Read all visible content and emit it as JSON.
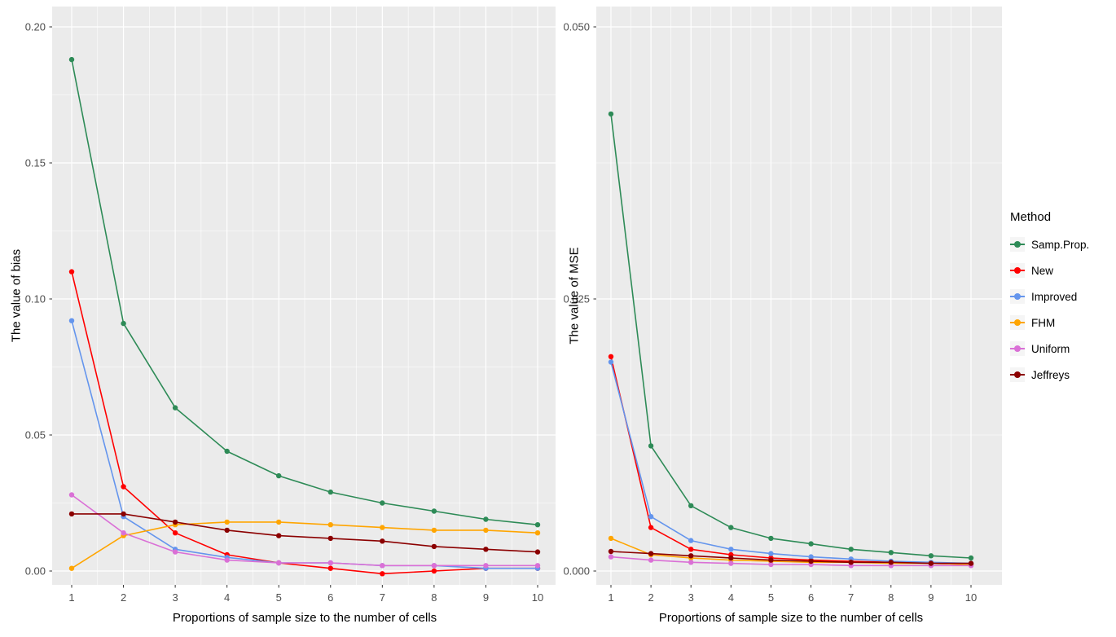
{
  "figure": {
    "background": "#FFFFFF",
    "panel_background": "#EBEBEB",
    "gridline_color": "#FFFFFF",
    "tick_label_color": "#4D4D4D",
    "tick_mark_color": "#333333",
    "axis_title_color": "#000000"
  },
  "legend": {
    "title": "Method",
    "entries": [
      {
        "label": "Samp.Prop.",
        "color": "#2E8B57"
      },
      {
        "label": "New",
        "color": "#FF0000"
      },
      {
        "label": "Improved",
        "color": "#6495ED"
      },
      {
        "label": "FHM",
        "color": "#FFA500"
      },
      {
        "label": "Uniform",
        "color": "#DA70D6"
      },
      {
        "label": "Jeffreys",
        "color": "#8B0000"
      }
    ]
  },
  "chart_data": [
    {
      "type": "line",
      "xlabel": "Proportions of sample size to the number of cells",
      "ylabel": "The value of bias",
      "x": [
        1,
        2,
        3,
        4,
        5,
        6,
        7,
        8,
        9,
        10
      ],
      "xlim": [
        1,
        10
      ],
      "ylim": [
        0,
        0.2
      ],
      "yticks": [
        0,
        0.05,
        0.1,
        0.15,
        0.2
      ],
      "ytick_labels": [
        "0.00",
        "0.05",
        "0.10",
        "0.15",
        "0.20"
      ],
      "xtick_labels": [
        "1",
        "2",
        "3",
        "4",
        "5",
        "6",
        "7",
        "8",
        "9",
        "10"
      ],
      "grid": true,
      "legend_position": "right",
      "series": [
        {
          "name": "Samp.Prop.",
          "color": "#2E8B57",
          "values": [
            0.188,
            0.091,
            0.06,
            0.044,
            0.035,
            0.029,
            0.025,
            0.022,
            0.019,
            0.017
          ]
        },
        {
          "name": "New",
          "color": "#FF0000",
          "values": [
            0.11,
            0.031,
            0.014,
            0.006,
            0.003,
            0.001,
            -0.001,
            0.0,
            0.001,
            0.001
          ]
        },
        {
          "name": "Improved",
          "color": "#6495ED",
          "values": [
            0.092,
            0.02,
            0.008,
            0.005,
            0.003,
            0.003,
            0.002,
            0.002,
            0.001,
            0.001
          ]
        },
        {
          "name": "FHM",
          "color": "#FFA500",
          "values": [
            0.001,
            0.013,
            0.017,
            0.018,
            0.018,
            0.017,
            0.016,
            0.015,
            0.015,
            0.014
          ]
        },
        {
          "name": "Uniform",
          "color": "#DA70D6",
          "values": [
            0.028,
            0.014,
            0.007,
            0.004,
            0.003,
            0.003,
            0.002,
            0.002,
            0.002,
            0.002
          ]
        },
        {
          "name": "Jeffreys",
          "color": "#8B0000",
          "values": [
            0.021,
            0.021,
            0.018,
            0.015,
            0.013,
            0.012,
            0.011,
            0.009,
            0.008,
            0.007
          ]
        }
      ]
    },
    {
      "type": "line",
      "xlabel": "Proportions of sample size to the number of cells",
      "ylabel": "The value of MSE",
      "x": [
        1,
        2,
        3,
        4,
        5,
        6,
        7,
        8,
        9,
        10
      ],
      "xlim": [
        1,
        10
      ],
      "ylim": [
        0,
        0.05
      ],
      "yticks": [
        0,
        0.025,
        0.05
      ],
      "ytick_labels": [
        "0.000",
        "0.025",
        "0.050"
      ],
      "xtick_labels": [
        "1",
        "2",
        "3",
        "4",
        "5",
        "6",
        "7",
        "8",
        "9",
        "10"
      ],
      "grid": true,
      "legend_position": "right",
      "series": [
        {
          "name": "Samp.Prop.",
          "color": "#2E8B57",
          "values": [
            0.042,
            0.0115,
            0.006,
            0.004,
            0.003,
            0.0025,
            0.002,
            0.0017,
            0.0014,
            0.0012
          ]
        },
        {
          "name": "New",
          "color": "#FF0000",
          "values": [
            0.0197,
            0.004,
            0.002,
            0.0015,
            0.0012,
            0.001,
            0.0009,
            0.0008,
            0.0007,
            0.0006
          ]
        },
        {
          "name": "Improved",
          "color": "#6495ED",
          "values": [
            0.0192,
            0.005,
            0.0028,
            0.002,
            0.0016,
            0.0013,
            0.0011,
            0.0009,
            0.0008,
            0.0007
          ]
        },
        {
          "name": "FHM",
          "color": "#FFA500",
          "values": [
            0.003,
            0.0015,
            0.0012,
            0.001,
            0.0009,
            0.0008,
            0.0008,
            0.0007,
            0.0007,
            0.0006
          ]
        },
        {
          "name": "Uniform",
          "color": "#DA70D6",
          "values": [
            0.0013,
            0.001,
            0.0008,
            0.0007,
            0.0006,
            0.0006,
            0.0005,
            0.0005,
            0.0005,
            0.0005
          ]
        },
        {
          "name": "Jeffreys",
          "color": "#8B0000",
          "values": [
            0.0018,
            0.0016,
            0.0014,
            0.0012,
            0.001,
            0.0009,
            0.0008,
            0.0008,
            0.0007,
            0.0007
          ]
        }
      ]
    }
  ]
}
